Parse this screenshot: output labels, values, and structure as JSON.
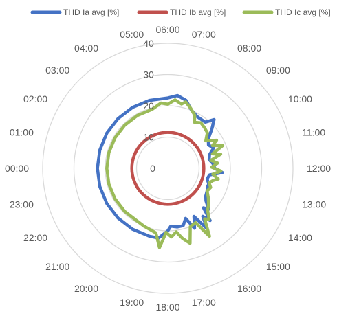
{
  "chart_data": {
    "type": "radar",
    "title": "",
    "categories": [
      "00:00",
      "01:00",
      "02:00",
      "03:00",
      "04:00",
      "05:00",
      "06:00",
      "07:00",
      "08:00",
      "09:00",
      "10:00",
      "11:00",
      "12:00",
      "13:00",
      "14:00",
      "15:00",
      "16:00",
      "17:00",
      "18:00",
      "19:00",
      "20:00",
      "21:00",
      "22:00",
      "23:00"
    ],
    "radial_axis": {
      "min": 0,
      "max": 40,
      "step": 10,
      "ticks": [
        "0",
        "10",
        "20",
        "30",
        "40"
      ]
    },
    "grid": true,
    "legend_position": "top",
    "series": [
      {
        "name": "THD Ia avg [%]",
        "color": "#4472C4",
        "values": [
          [
            0,
            22.5
          ],
          [
            1,
            22.5
          ],
          [
            2,
            22.5
          ],
          [
            3,
            22.5
          ],
          [
            4,
            22.5
          ],
          [
            5,
            22.5
          ],
          [
            6,
            22.5
          ],
          [
            6.5,
            23.5
          ],
          [
            7,
            22.5
          ],
          [
            7.5,
            20
          ],
          [
            8,
            19
          ],
          [
            8.6,
            19
          ],
          [
            8.9,
            21.5
          ],
          [
            9.2,
            19
          ],
          [
            9.6,
            16
          ],
          [
            10,
            15
          ],
          [
            10.4,
            16
          ],
          [
            10.8,
            14
          ],
          [
            11.2,
            13.5
          ],
          [
            11.6,
            14.5
          ],
          [
            12,
            15
          ],
          [
            12.3,
            17.5
          ],
          [
            12.6,
            13.5
          ],
          [
            13,
            13
          ],
          [
            13.4,
            14
          ],
          [
            13.7,
            14
          ],
          [
            14,
            14.5
          ],
          [
            14.4,
            15
          ],
          [
            14.7,
            16
          ],
          [
            15,
            18.5
          ],
          [
            15.2,
            17
          ],
          [
            15.4,
            21.5
          ],
          [
            15.6,
            19
          ],
          [
            15.8,
            23
          ],
          [
            16.1,
            17.5
          ],
          [
            16.4,
            21
          ],
          [
            16.7,
            17
          ],
          [
            17,
            19
          ],
          [
            17.4,
            19
          ],
          [
            17.8,
            18.5
          ],
          [
            18,
            20
          ],
          [
            18.5,
            22.5
          ],
          [
            19,
            22.5
          ],
          [
            20,
            22.5
          ],
          [
            21,
            22.5
          ],
          [
            22,
            22.5
          ],
          [
            23,
            22.5
          ]
        ]
      },
      {
        "name": "THD Ib avg [%]",
        "color": "#C0504D",
        "values": [
          [
            0,
            11.5
          ],
          [
            6,
            11.5
          ],
          [
            12,
            11.5
          ],
          [
            18,
            11.5
          ],
          [
            23,
            11.5
          ]
        ]
      },
      {
        "name": "THD Ic avg [%]",
        "color": "#9BBB59",
        "values": [
          [
            0,
            19.5
          ],
          [
            1,
            19.5
          ],
          [
            2,
            19.5
          ],
          [
            3,
            19.5
          ],
          [
            4,
            19.5
          ],
          [
            5,
            19.5
          ],
          [
            5.6,
            21
          ],
          [
            6,
            20.5
          ],
          [
            6.4,
            22
          ],
          [
            6.8,
            21
          ],
          [
            7,
            22
          ],
          [
            7.4,
            20.5
          ],
          [
            7.8,
            19
          ],
          [
            8,
            17
          ],
          [
            8.4,
            18
          ],
          [
            8.8,
            17.5
          ],
          [
            9.2,
            17
          ],
          [
            9.6,
            15
          ],
          [
            10,
            18
          ],
          [
            10.2,
            16
          ],
          [
            10.5,
            19
          ],
          [
            10.8,
            15
          ],
          [
            11,
            17.5
          ],
          [
            11.3,
            14
          ],
          [
            11.6,
            16
          ],
          [
            11.9,
            14
          ],
          [
            12.2,
            17
          ],
          [
            12.5,
            14.5
          ],
          [
            12.8,
            16.5
          ],
          [
            13,
            15
          ],
          [
            13.3,
            14
          ],
          [
            13.6,
            15
          ],
          [
            14,
            14.5
          ],
          [
            14.4,
            16
          ],
          [
            14.8,
            17.5
          ],
          [
            15.1,
            18.5
          ],
          [
            15.4,
            21
          ],
          [
            15.6,
            20
          ],
          [
            15.9,
            25.5
          ],
          [
            16.2,
            19.5
          ],
          [
            16.6,
            20
          ],
          [
            16.9,
            25
          ],
          [
            17.2,
            23
          ],
          [
            17.5,
            20.5
          ],
          [
            17.8,
            22
          ],
          [
            18.1,
            20.5
          ],
          [
            18.4,
            25.5
          ],
          [
            18.7,
            21
          ],
          [
            19,
            20.5
          ],
          [
            19.5,
            20
          ],
          [
            20,
            19.5
          ],
          [
            21,
            19.5
          ],
          [
            22,
            19.5
          ],
          [
            23,
            19.5
          ]
        ]
      }
    ]
  }
}
